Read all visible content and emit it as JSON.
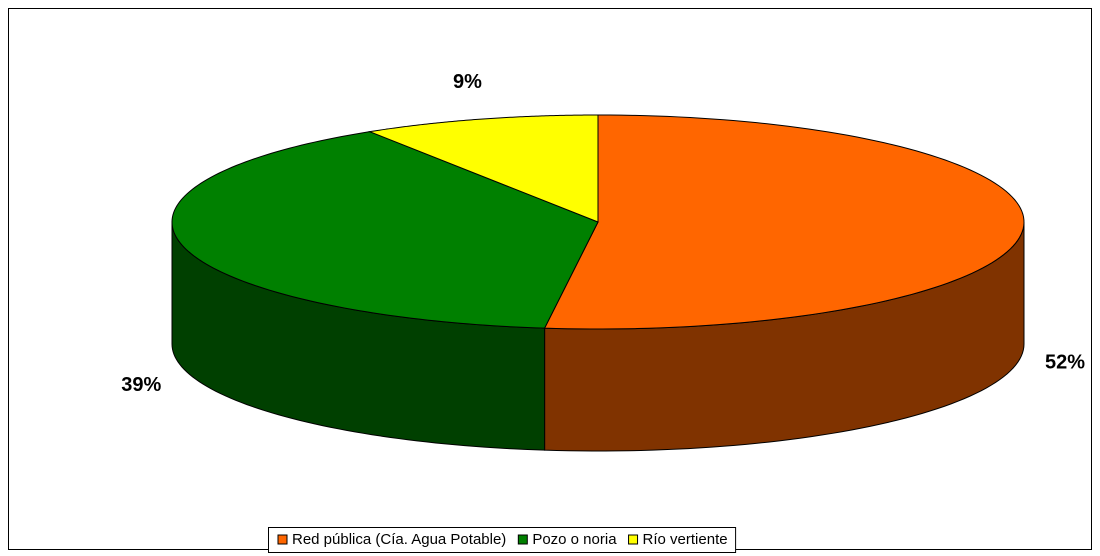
{
  "chart_data": {
    "type": "pie3d",
    "categories": [
      "Red pública (Cía. Agua Potable)",
      "Pozo o noria",
      "Río vertiente"
    ],
    "values": [
      52,
      39,
      9
    ],
    "value_labels": [
      "52%",
      "39%",
      "9%"
    ],
    "colors": [
      "#ff6600",
      "#008000",
      "#ffff00"
    ],
    "legend": "bottom"
  }
}
